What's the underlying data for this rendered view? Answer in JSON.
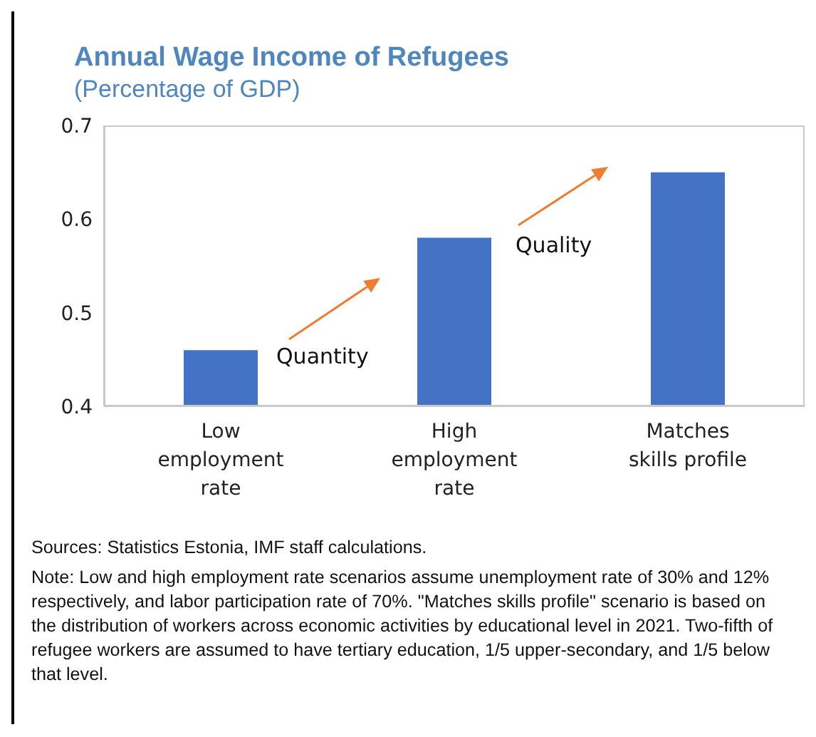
{
  "chart_data": {
    "type": "bar",
    "title": "Annual Wage Income of Refugees",
    "subtitle": "(Percentage of GDP)",
    "categories": [
      "Low employment rate",
      "High employment rate",
      "Matches skills profile"
    ],
    "values": [
      0.46,
      0.58,
      0.65
    ],
    "color": "#4472c4",
    "ylim": [
      0.4,
      0.7
    ],
    "yticks": [
      0.4,
      0.5,
      0.6,
      0.7
    ],
    "grid": false,
    "legend": false,
    "annotations": [
      "Quantity",
      "Quality",
      "Sources: Statistics Estonia, IMF staff calculations.",
      "Note: Low and high employment rate scenarios assume unemployment rate of 30% and 12% respectively, and labor participation rate of 70%. \"Matches skills profile\" scenario is based on the distribution of workers across economic activities by educational level in 2021. Two-fifth of refugee workers are assumed to have tertiary education, 1/5 upper-secondary, and 1/5 below that level."
    ]
  }
}
